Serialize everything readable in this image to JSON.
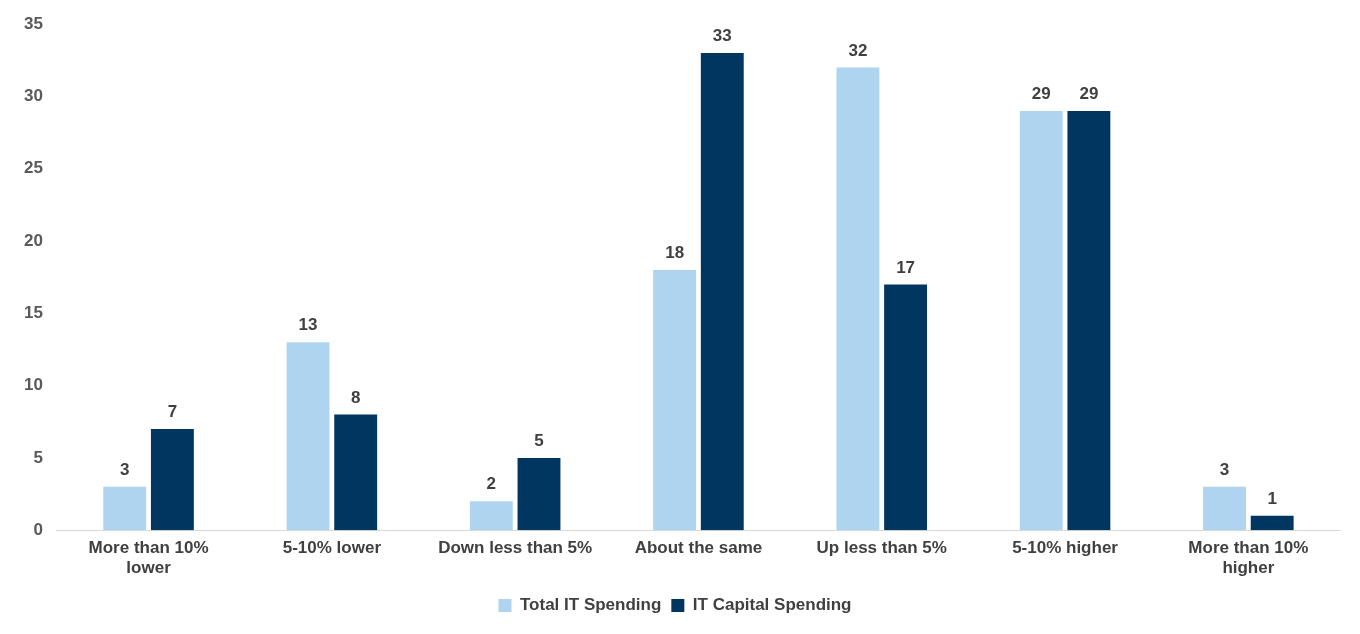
{
  "chart_data": {
    "type": "bar",
    "categories": [
      "More than 10% lower",
      "5-10% lower",
      "Down less than 5%",
      "About the same",
      "Up less than 5%",
      "5-10% higher",
      "More than 10% higher"
    ],
    "series": [
      {
        "name": "Total IT Spending",
        "color": "#aed4f0",
        "values": [
          3,
          13,
          2,
          18,
          32,
          29,
          3
        ]
      },
      {
        "name": "IT Capital Spending",
        "color": "#003660",
        "values": [
          7,
          8,
          5,
          33,
          17,
          29,
          1
        ]
      }
    ],
    "ylim": [
      0,
      35
    ],
    "yticks": [
      0,
      5,
      10,
      15,
      20,
      25,
      30,
      35
    ],
    "grid": false,
    "legend": "bottom",
    "data_labels": true
  }
}
